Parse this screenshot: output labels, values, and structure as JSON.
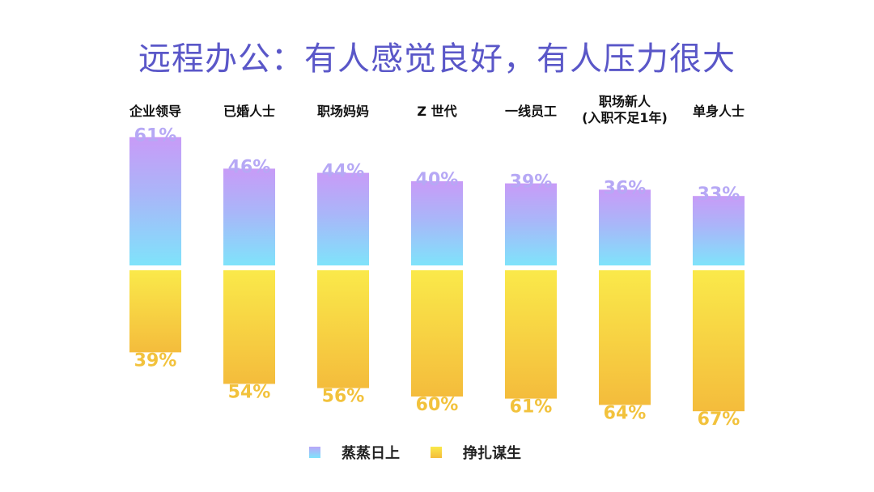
{
  "chart_data": {
    "type": "bar",
    "title": "远程办公：有人感觉良好，有人压力很大",
    "categories": [
      [
        "企业领导"
      ],
      [
        "已婚人士"
      ],
      [
        "职场妈妈"
      ],
      [
        "Z 世代"
      ],
      [
        "一线员工"
      ],
      [
        "职场新人",
        "(入职不足1年)"
      ],
      [
        "单身人士"
      ]
    ],
    "series": [
      {
        "name": "蒸蒸日上",
        "values": [
          61,
          46,
          44,
          40,
          39,
          36,
          33
        ],
        "labels": [
          "61%",
          "46%",
          "44%",
          "40%",
          "39%",
          "36%",
          "33%"
        ]
      },
      {
        "name": "挣扎谋生",
        "values": [
          39,
          54,
          56,
          60,
          61,
          64,
          67
        ],
        "labels": [
          "39%",
          "54%",
          "56%",
          "60%",
          "61%",
          "64%",
          "67%"
        ]
      }
    ],
    "ylim": [
      0,
      100
    ],
    "legend": "bottom-center",
    "grid": false,
    "colors": {
      "up_top": "#C89BF7",
      "up_mid": "#A9B6F9",
      "up_bottom": "#7FE3FA",
      "down_top": "#FAE94A",
      "down_bottom": "#F4BC3C",
      "up_label": "#B6A8F5",
      "down_label": "#F2C23C",
      "title": "#5A57C8"
    }
  }
}
